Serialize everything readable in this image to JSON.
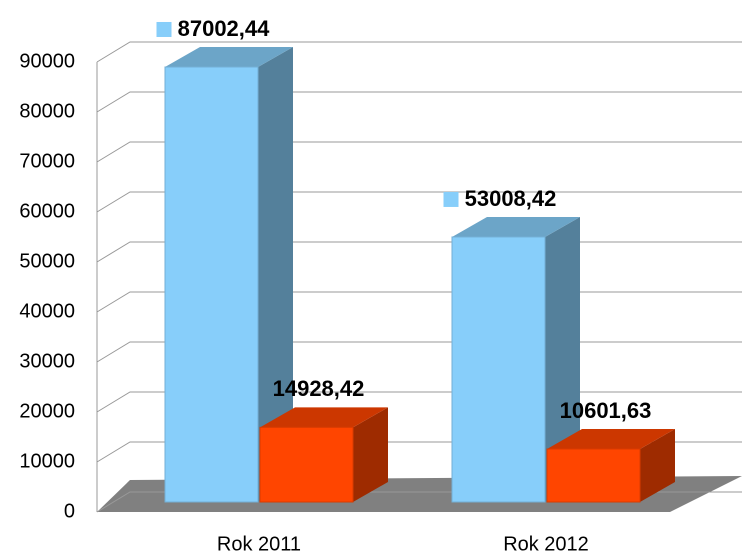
{
  "chart_data": {
    "type": "bar3d",
    "categories": [
      "Rok 2011",
      "Rok 2012"
    ],
    "series": [
      {
        "color": "#87cefa",
        "values": [
          87002.44,
          53008.42
        ],
        "value_labels": [
          "87002,44",
          "53008,42"
        ]
      },
      {
        "color": "#ff4500",
        "values": [
          14928.42,
          10601.63
        ],
        "value_labels": [
          "14928,42",
          "10601,63"
        ]
      }
    ],
    "ylim": [
      0,
      90000
    ],
    "yticks": [
      0,
      10000,
      20000,
      30000,
      40000,
      50000,
      60000,
      70000,
      80000,
      90000
    ],
    "grid": true
  }
}
